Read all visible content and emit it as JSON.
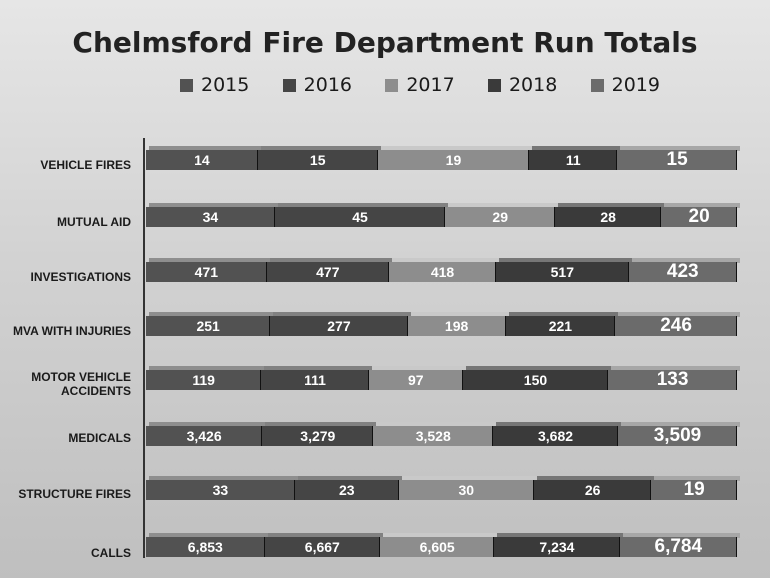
{
  "chart_data": {
    "type": "bar",
    "orientation": "horizontal",
    "stacked": true,
    "title": "Chelmsford Fire Department Run Totals",
    "legend_position": "top",
    "categories": [
      "VEHICLE FIRES",
      "MUTUAL AID",
      "INVESTIGATIONS",
      "MVA WITH INJURIES",
      "MOTOR VEHICLE ACCIDENTS",
      "MEDICALS",
      "STRUCTURE FIRES",
      "CALLS"
    ],
    "series": [
      {
        "name": "2015",
        "color": "#525252",
        "value_labels": [
          "14",
          "34",
          "471",
          "251",
          "119",
          "3,426",
          "33",
          "6,853"
        ]
      },
      {
        "name": "2016",
        "color": "#454545",
        "value_labels": [
          "15",
          "45",
          "477",
          "277",
          "111",
          "3,279",
          "23",
          "6,667"
        ]
      },
      {
        "name": "2017",
        "color": "#8d8d8d",
        "value_labels": [
          "19",
          "29",
          "418",
          "198",
          "97",
          "3,528",
          "30",
          "6,605"
        ]
      },
      {
        "name": "2018",
        "color": "#3a3a3a",
        "value_labels": [
          "11",
          "28",
          "517",
          "221",
          "150",
          "3,682",
          "26",
          "7,234"
        ]
      },
      {
        "name": "2019",
        "color": "#6b6b6b",
        "value_labels": [
          "15",
          "20",
          "423",
          "246",
          "133",
          "3,509",
          "19",
          "6,784"
        ]
      }
    ]
  }
}
